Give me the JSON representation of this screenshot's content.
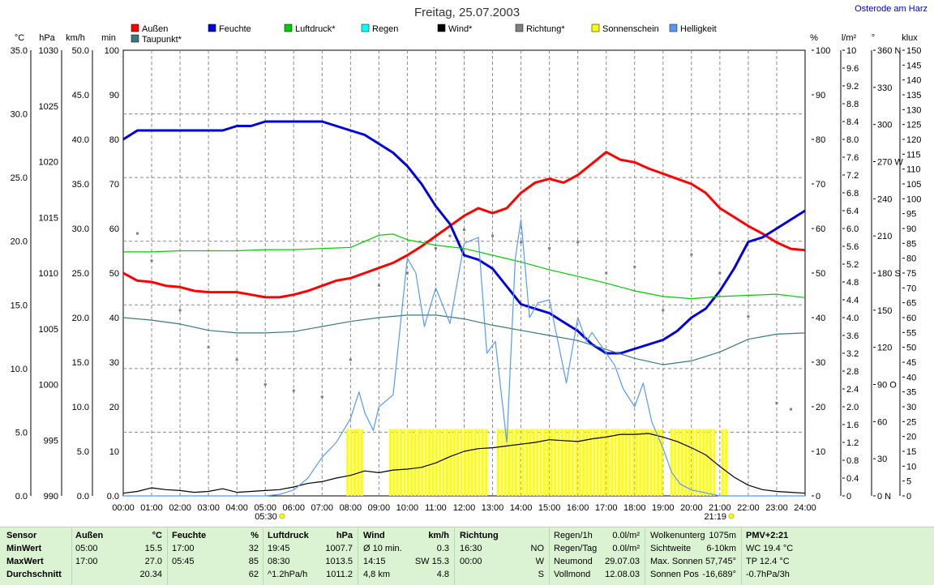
{
  "header": {
    "title": "Freitag, 25.07.2003",
    "location": "Osterode am Harz"
  },
  "legend": [
    {
      "label": "Außen",
      "color": "#ff0000"
    },
    {
      "label": "Feuchte",
      "color": "#0000dd"
    },
    {
      "label": "Luftdruck*",
      "color": "#00cc00"
    },
    {
      "label": "Regen",
      "color": "#00ffff"
    },
    {
      "label": "Wind*",
      "color": "#000000"
    },
    {
      "label": "Richtung*",
      "color": "#808080"
    },
    {
      "label": "Sonnenschein",
      "color": "#ffff00"
    },
    {
      "label": "Helligkeit",
      "color": "#5599ff"
    },
    {
      "label": "Taupunkt*",
      "color": "#3a7a7a"
    }
  ],
  "axis_units": {
    "temp": "°C",
    "press": "hPa",
    "wind": "km/h",
    "sun": "min",
    "hum": "%",
    "rain": "l/m²",
    "dir": "°",
    "lux": "klux"
  },
  "axis_ticks": {
    "temp": [
      "35.0",
      "30.0",
      "25.0",
      "20.0",
      "15.0",
      "10.0",
      "5.0",
      "0.0"
    ],
    "press": [
      "1030",
      "1025",
      "1020",
      "1015",
      "1010",
      "1005",
      "1000",
      "995",
      "990"
    ],
    "wind": [
      "50.0",
      "45.0",
      "40.0",
      "35.0",
      "30.0",
      "25.0",
      "20.0",
      "15.0",
      "10.0",
      "5.0",
      "0.0"
    ],
    "sun": [
      "100",
      "90",
      "80",
      "70",
      "60",
      "50",
      "40",
      "30",
      "20",
      "10",
      "0.0"
    ],
    "hum": [
      "100",
      "90",
      "80",
      "70",
      "60",
      "50",
      "40",
      "30",
      "20",
      "10",
      "0"
    ],
    "rain": [
      "10",
      "9.6",
      "9.2",
      "8.8",
      "8.4",
      "8.0",
      "7.6",
      "7.2",
      "6.8",
      "6.4",
      "6.0",
      "5.6",
      "5.2",
      "4.8",
      "4.4",
      "4.0",
      "3.6",
      "3.2",
      "2.8",
      "2.4",
      "2.0",
      "1.6",
      "1.2",
      "0.8",
      "0.4",
      "0"
    ],
    "dir": [
      "360 N",
      "330",
      "300",
      "270 W",
      "240",
      "210",
      "180 S",
      "150",
      "120",
      "90 O",
      "60",
      "30",
      "0 N"
    ],
    "lux": [
      "150",
      "145",
      "140",
      "135",
      "130",
      "125",
      "120",
      "115",
      "110",
      "105",
      "100",
      "95",
      "90",
      "85",
      "80",
      "75",
      "70",
      "65",
      "60",
      "55",
      "50",
      "45",
      "40",
      "35",
      "30",
      "25",
      "20",
      "15",
      "10",
      "5",
      "0"
    ],
    "time": [
      "00:00",
      "01:00",
      "02:00",
      "03:00",
      "04:00",
      "05:00",
      "06:00",
      "07:00",
      "08:00",
      "09:00",
      "10:00",
      "11:00",
      "12:00",
      "13:00",
      "14:00",
      "15:00",
      "16:00",
      "17:00",
      "18:00",
      "19:00",
      "20:00",
      "21:00",
      "22:00",
      "23:00",
      "24:00"
    ]
  },
  "sunrise": "05:30",
  "sunset": "21:19",
  "chart_data": {
    "type": "line",
    "title": "Freitag, 25.07.2003",
    "x_unit": "hour",
    "xlim": [
      0,
      24
    ],
    "series": [
      {
        "name": "Außen",
        "axis": "temp",
        "unit": "°C",
        "color": "#ff0000",
        "x": [
          0,
          0.5,
          1,
          1.5,
          2,
          2.5,
          3,
          3.5,
          4,
          4.5,
          5,
          5.5,
          6,
          6.5,
          7,
          7.5,
          8,
          8.5,
          9,
          9.5,
          10,
          10.5,
          11,
          11.5,
          12,
          12.5,
          13,
          13.5,
          14,
          14.5,
          15,
          15.5,
          16,
          16.5,
          17,
          17.5,
          18,
          18.5,
          19,
          19.5,
          20,
          20.5,
          21,
          21.5,
          22,
          22.5,
          23,
          23.5,
          24
        ],
        "y": [
          17.5,
          16.9,
          16.8,
          16.5,
          16.4,
          16.1,
          16.0,
          16.0,
          16.0,
          15.8,
          15.6,
          15.6,
          15.8,
          16.1,
          16.5,
          16.9,
          17.1,
          17.5,
          17.9,
          18.3,
          18.9,
          19.6,
          20.4,
          21.2,
          22.0,
          22.6,
          22.2,
          22.6,
          23.8,
          24.6,
          24.9,
          24.6,
          25.2,
          26.1,
          27.0,
          26.4,
          26.2,
          25.7,
          25.3,
          24.9,
          24.5,
          23.8,
          22.6,
          21.9,
          21.2,
          20.6,
          19.9,
          19.4,
          19.3
        ]
      },
      {
        "name": "Feuchte",
        "axis": "hum",
        "unit": "%",
        "color": "#0000dd",
        "x": [
          0,
          0.5,
          1,
          1.5,
          2,
          2.5,
          3,
          3.5,
          4,
          4.5,
          5,
          5.5,
          6,
          6.5,
          7,
          7.5,
          8,
          8.5,
          9,
          9.5,
          10,
          10.5,
          11,
          11.5,
          12,
          12.5,
          13,
          13.5,
          14,
          14.5,
          15,
          15.5,
          16,
          16.5,
          17,
          17.5,
          18,
          18.5,
          19,
          19.5,
          20,
          20.5,
          21,
          21.5,
          22,
          22.5,
          23,
          23.5,
          24
        ],
        "y": [
          80,
          82,
          82,
          82,
          82,
          82,
          82,
          82,
          83,
          83,
          84,
          84,
          84,
          84,
          84,
          83,
          82,
          81,
          79,
          77,
          74,
          70,
          65,
          61,
          54,
          53,
          51,
          47,
          43,
          42,
          41,
          39,
          37,
          34,
          32,
          32,
          33,
          34,
          35,
          37,
          40,
          42,
          46,
          51,
          57,
          58,
          60,
          62,
          64
        ]
      },
      {
        "name": "Luftdruck*",
        "axis": "press",
        "unit": "hPa",
        "color": "#00cc00",
        "x": [
          0,
          1,
          2,
          3,
          4,
          5,
          6,
          7,
          8,
          9,
          9.5,
          10,
          11,
          12,
          13,
          14,
          15,
          16,
          17,
          18,
          19,
          20,
          21,
          22,
          23,
          24
        ],
        "y": [
          1011.9,
          1011.9,
          1012.0,
          1012.0,
          1012.0,
          1012.1,
          1012.1,
          1012.2,
          1012.3,
          1013.4,
          1013.5,
          1013.0,
          1012.5,
          1012.2,
          1011.6,
          1011.0,
          1010.3,
          1009.7,
          1009.1,
          1008.4,
          1007.9,
          1007.7,
          1007.9,
          1008.0,
          1008.1,
          1007.8
        ]
      },
      {
        "name": "Taupunkt*",
        "axis": "temp",
        "unit": "°C",
        "color": "#3a7a7a",
        "x": [
          0,
          1,
          2,
          3,
          4,
          5,
          6,
          7,
          8,
          9,
          10,
          11,
          12,
          13,
          14,
          15,
          16,
          17,
          18,
          19,
          20,
          21,
          22,
          23,
          24
        ],
        "y": [
          14.0,
          13.8,
          13.5,
          13.0,
          12.8,
          12.8,
          12.9,
          13.3,
          13.7,
          14.0,
          14.2,
          14.2,
          13.9,
          13.4,
          13.0,
          12.6,
          12.2,
          11.5,
          10.8,
          10.3,
          10.6,
          11.3,
          12.3,
          12.7,
          12.8
        ]
      },
      {
        "name": "Wind*",
        "axis": "wind",
        "unit": "km/h",
        "color": "#000000",
        "x": [
          0,
          0.5,
          1,
          1.5,
          2,
          2.5,
          3,
          3.5,
          4,
          4.5,
          5,
          5.5,
          6,
          6.5,
          7,
          7.5,
          8,
          8.5,
          9,
          9.5,
          10,
          10.5,
          11,
          11.5,
          12,
          12.5,
          13,
          13.5,
          14,
          14.5,
          15,
          15.5,
          16,
          16.5,
          17,
          17.5,
          18,
          18.5,
          19,
          19.5,
          20,
          20.5,
          21,
          21.5,
          22,
          22.5,
          23,
          23.5,
          24
        ],
        "y": [
          0.3,
          0.5,
          0.9,
          0.7,
          0.6,
          0.4,
          0.5,
          0.8,
          0.4,
          0.5,
          0.6,
          0.7,
          1.0,
          1.4,
          1.6,
          2.0,
          2.3,
          2.8,
          2.6,
          2.9,
          3.0,
          3.2,
          3.7,
          4.4,
          5.0,
          5.3,
          5.4,
          5.6,
          5.8,
          6.0,
          6.3,
          6.2,
          6.1,
          6.4,
          6.6,
          6.9,
          6.9,
          7.0,
          6.6,
          6.1,
          5.4,
          4.6,
          3.3,
          2.1,
          1.2,
          0.7,
          0.5,
          0.4,
          0.3
        ]
      },
      {
        "name": "Helligkeit",
        "axis": "lux",
        "unit": "klux",
        "color": "#5599ff",
        "x": [
          0,
          5,
          5.5,
          6,
          6.5,
          7,
          7.5,
          8,
          8.3,
          8.5,
          8.8,
          9,
          9.5,
          10,
          10.3,
          10.6,
          11,
          11.5,
          12,
          12.5,
          12.8,
          13.1,
          13.5,
          13.8,
          14,
          14.3,
          14.6,
          15,
          15.3,
          15.6,
          16,
          16.3,
          16.5,
          17,
          17.3,
          17.6,
          18,
          18.3,
          18.6,
          19,
          19.3,
          19.6,
          20,
          20.5,
          21,
          21.5,
          22,
          24
        ],
        "y": [
          0,
          0,
          0.5,
          2,
          6,
          13,
          18,
          26,
          35,
          28,
          22,
          30,
          34,
          80,
          75,
          57,
          70,
          58,
          85,
          87,
          48,
          52,
          18,
          80,
          93,
          60,
          65,
          66,
          52,
          38,
          60,
          52,
          55,
          48,
          44,
          36,
          30,
          38,
          25,
          16,
          8,
          4,
          2,
          1,
          0,
          0,
          0,
          0
        ]
      },
      {
        "name": "Richtung*",
        "axis": "dir",
        "unit": "°",
        "color": "#808080",
        "style": "dots",
        "x": [
          0.5,
          1,
          2,
          3,
          4,
          5,
          6,
          7,
          8,
          9,
          10,
          11,
          11.5,
          12,
          13,
          14,
          15,
          16,
          17,
          18,
          19,
          20,
          21,
          22,
          23,
          23.5
        ],
        "y": [
          212,
          190,
          150,
          120,
          110,
          90,
          85,
          80,
          110,
          170,
          180,
          200,
          210,
          215,
          210,
          205,
          200,
          205,
          180,
          185,
          150,
          195,
          180,
          145,
          75,
          70
        ]
      }
    ],
    "sunshine": {
      "name": "Sonnenschein",
      "axis": "sun",
      "unit": "min",
      "color": "#ffff00",
      "value": 15,
      "intervals": [
        [
          7.9,
          8.5
        ],
        [
          9.4,
          12.8
        ],
        [
          13.2,
          19.0
        ],
        [
          19.3,
          20.9
        ],
        [
          21.1,
          21.3
        ]
      ]
    }
  },
  "table": {
    "col_sensor": {
      "header": "Sensor",
      "rows": [
        "MinWert",
        "MaxWert",
        "Durchschnitt"
      ]
    },
    "col_aussen": {
      "header": "Außen",
      "unit": "°C",
      "t1": "05:00",
      "v1": "15.5",
      "t2": "17:00",
      "v2": "27.0",
      "avg": "20.34"
    },
    "col_feuchte": {
      "header": "Feuchte",
      "unit": "%",
      "t1": "17:00",
      "v1": "32",
      "t2": "05:45",
      "v2": "85",
      "avg": "62"
    },
    "col_luftdruck": {
      "header": "Luftdruck",
      "unit": "hPa",
      "t1": "19:45",
      "v1": "1007.7",
      "t2": "08:30",
      "v2": "1013.5",
      "t3": "^1.2hPa/h",
      "avg": "1011.2"
    },
    "col_wind": {
      "header": "Wind",
      "unit": "km/h",
      "t1": "Ø 10 min.",
      "v1": "0.3",
      "t2": "14:15",
      "v2": "SW 15.3",
      "t3": "4,8 km",
      "avg": "4.8"
    },
    "col_richtung": {
      "header": "Richtung",
      "t1": "16:30",
      "v1": "NO",
      "t2": "00:00",
      "v2": "W",
      "v3": "S"
    },
    "col_regen": {
      "l1": "Regen/1h",
      "v1": "0.0l/m²",
      "l2": "Regen/Tag",
      "v2": "0.0l/m²",
      "l3": "Neumond",
      "v3": "29.07.03",
      "l4": "Vollmond",
      "v4": "12.08.03"
    },
    "col_wolken": {
      "l1": "Wolkenunterg",
      "v1": "1075m",
      "l2": "Sichtweite",
      "v2": "6-10km",
      "l3": "Max. Sonnen",
      "v3": "57,745°",
      "l4": "Sonnen Pos",
      "v4": "-16,689°"
    },
    "col_pmv": {
      "l1": "PMV+2:21",
      "l2": "WC 19.4 °C",
      "l3": "TP 12.4 °C",
      "l4": "-0.7hPa/3h"
    }
  }
}
